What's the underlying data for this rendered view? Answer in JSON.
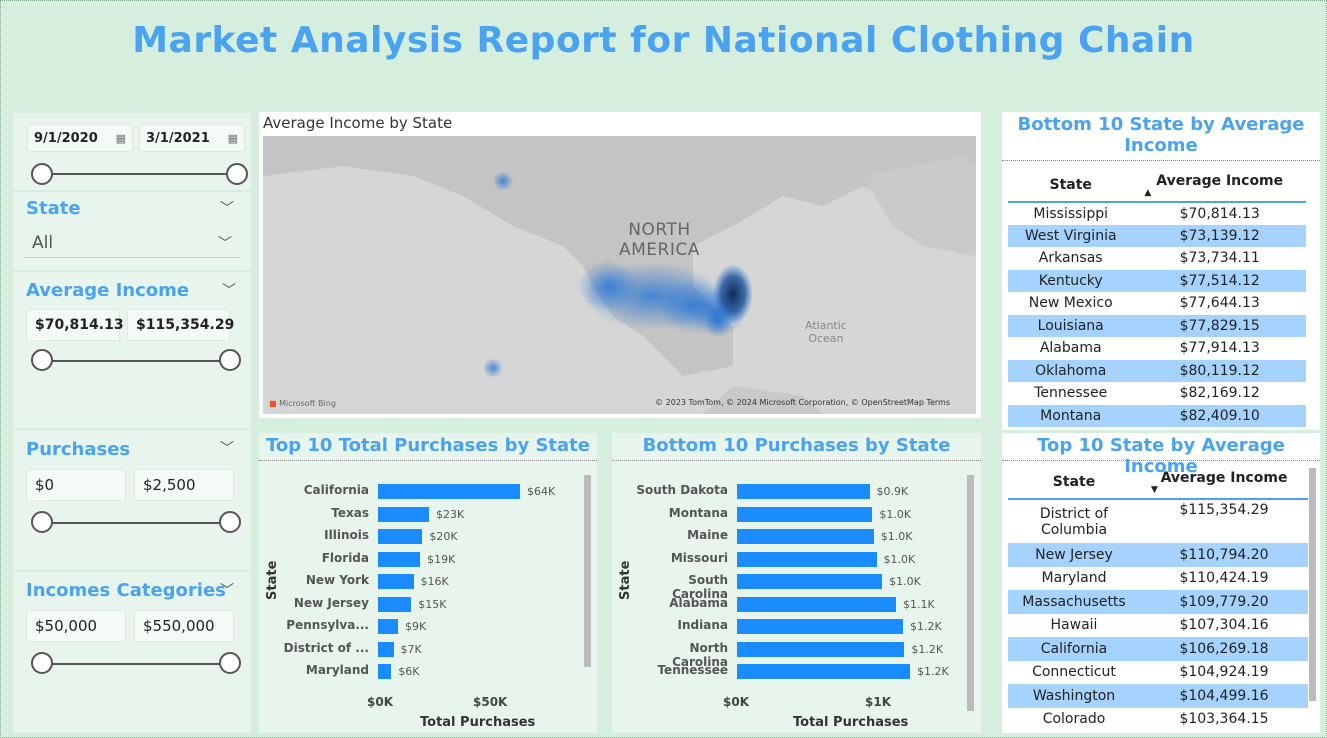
{
  "report_title": "Market Analysis Report for National Clothing Chain",
  "date_slicer": {
    "start": "9/1/2020",
    "end": "3/1/2021"
  },
  "state_slicer": {
    "title": "State",
    "value": "All"
  },
  "avg_income_slicer": {
    "title": "Average Income",
    "min": "$70,814.13",
    "max": "$115,354.29"
  },
  "purchases_slicer": {
    "title": "Purchases",
    "min": "$0",
    "max": "$2,500"
  },
  "incomes_cat_slicer": {
    "title": "Incomes Categories",
    "min": "$50,000",
    "max": "$550,000"
  },
  "map": {
    "title": "Average Income by State",
    "region_label_1": "NORTH",
    "region_label_2": "AMERICA",
    "ocean_label_1": "Atlantic",
    "ocean_label_2": "Ocean",
    "bing": "Microsoft Bing",
    "copyright": "© 2023 TomTom, © 2024 Microsoft Corporation, © OpenStreetMap  Terms"
  },
  "top_purchases": {
    "title": "Top 10 Total Purchases by State",
    "xlabel": "Total Purchases",
    "ylabel": "State",
    "ticks": [
      "$0K",
      "$50K"
    ],
    "chart_data": {
      "type": "bar",
      "categories": [
        "California",
        "Texas",
        "Illinois",
        "Florida",
        "New York",
        "New Jersey",
        "Pennsylva...",
        "District of ...",
        "Maryland"
      ],
      "values": [
        64,
        23,
        20,
        19,
        16,
        15,
        9,
        7,
        6
      ],
      "labels": [
        "$64K",
        "$23K",
        "$20K",
        "$19K",
        "$16K",
        "$15K",
        "$9K",
        "$7K",
        "$6K"
      ],
      "unit": "K"
    }
  },
  "bottom_purchases": {
    "title": "Bottom 10 Purchases by State",
    "xlabel": "Total Purchases",
    "ylabel": "State",
    "ticks": [
      "$0K",
      "$1K"
    ],
    "chart_data": {
      "type": "bar",
      "categories": [
        "South Dakota",
        "Montana",
        "Maine",
        "Missouri",
        "South Carolina",
        "Alabama",
        "Indiana",
        "North Carolina",
        "Tennessee"
      ],
      "values": [
        0.95,
        0.97,
        0.98,
        1.0,
        1.04,
        1.14,
        1.19,
        1.2,
        1.24
      ],
      "labels": [
        "$0.9K",
        "$1.0K",
        "$1.0K",
        "$1.0K",
        "$1.0K",
        "$1.1K",
        "$1.2K",
        "$1.2K",
        "$1.2K"
      ],
      "unit": "K"
    }
  },
  "bottom_income_table": {
    "title": "Bottom 10 State by Average Income",
    "col_state": "State",
    "col_income": "Average Income",
    "rows": [
      {
        "state": "Mississippi",
        "income": "$70,814.13"
      },
      {
        "state": "West Virginia",
        "income": "$73,139.12"
      },
      {
        "state": "Arkansas",
        "income": "$73,734.11"
      },
      {
        "state": "Kentucky",
        "income": "$77,514.12"
      },
      {
        "state": "New Mexico",
        "income": "$77,644.13"
      },
      {
        "state": "Louisiana",
        "income": "$77,829.15"
      },
      {
        "state": "Alabama",
        "income": "$77,914.13"
      },
      {
        "state": "Oklahoma",
        "income": "$80,119.12"
      },
      {
        "state": "Tennessee",
        "income": "$82,169.12"
      },
      {
        "state": "Montana",
        "income": "$82,409.10"
      }
    ]
  },
  "top_income_table": {
    "title": "Top 10 State by Average Income",
    "col_state": "State",
    "col_income": "Average Income",
    "rows": [
      {
        "state": "District of Columbia",
        "income": "$115,354.29"
      },
      {
        "state": "New Jersey",
        "income": "$110,794.20"
      },
      {
        "state": "Maryland",
        "income": "$110,424.19"
      },
      {
        "state": "Massachusetts",
        "income": "$109,779.20"
      },
      {
        "state": "Hawaii",
        "income": "$107,304.16"
      },
      {
        "state": "California",
        "income": "$106,269.18"
      },
      {
        "state": "Connecticut",
        "income": "$104,924.19"
      },
      {
        "state": "Washington",
        "income": "$104,499.16"
      },
      {
        "state": "Colorado",
        "income": "$103,364.15"
      }
    ]
  },
  "colors": {
    "accent": "#4aa3f0",
    "bar": "#1a8cff",
    "row_alt": "#a6d3fd",
    "page_bg": "#d6eedd"
  }
}
